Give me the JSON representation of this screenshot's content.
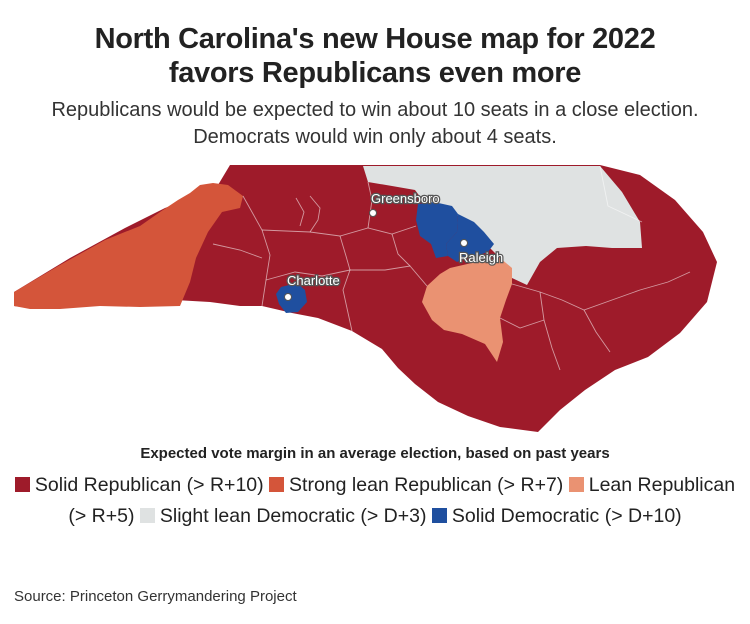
{
  "title_line1": "North Carolina's new House map for 2022",
  "title_line2": "favors Republicans even more",
  "subtitle_line1": "Republicans would be expected to win about 10 seats in a close election.",
  "subtitle_line2": "Democrats would win only about 4 seats.",
  "cities": {
    "greensboro": "Greensboro",
    "charlotte": "Charlotte",
    "raleigh": "Raleigh"
  },
  "legend": {
    "title": "Expected vote margin in an average election, based on past years",
    "items": [
      {
        "label": "Solid Republican (> R+10)",
        "color": "#9e1b2a"
      },
      {
        "label": "Strong lean Republican (> R+7)",
        "color": "#d4553a"
      },
      {
        "label": "Lean Republican (> R+5)",
        "color": "#ea9272"
      },
      {
        "label": "Slight lean Democratic (> D+3)",
        "color": "#dfe2e2"
      },
      {
        "label": "Solid Democratic (> D+10)",
        "color": "#1f4f9f"
      }
    ]
  },
  "source": "Source: Princeton Gerrymandering Project"
}
